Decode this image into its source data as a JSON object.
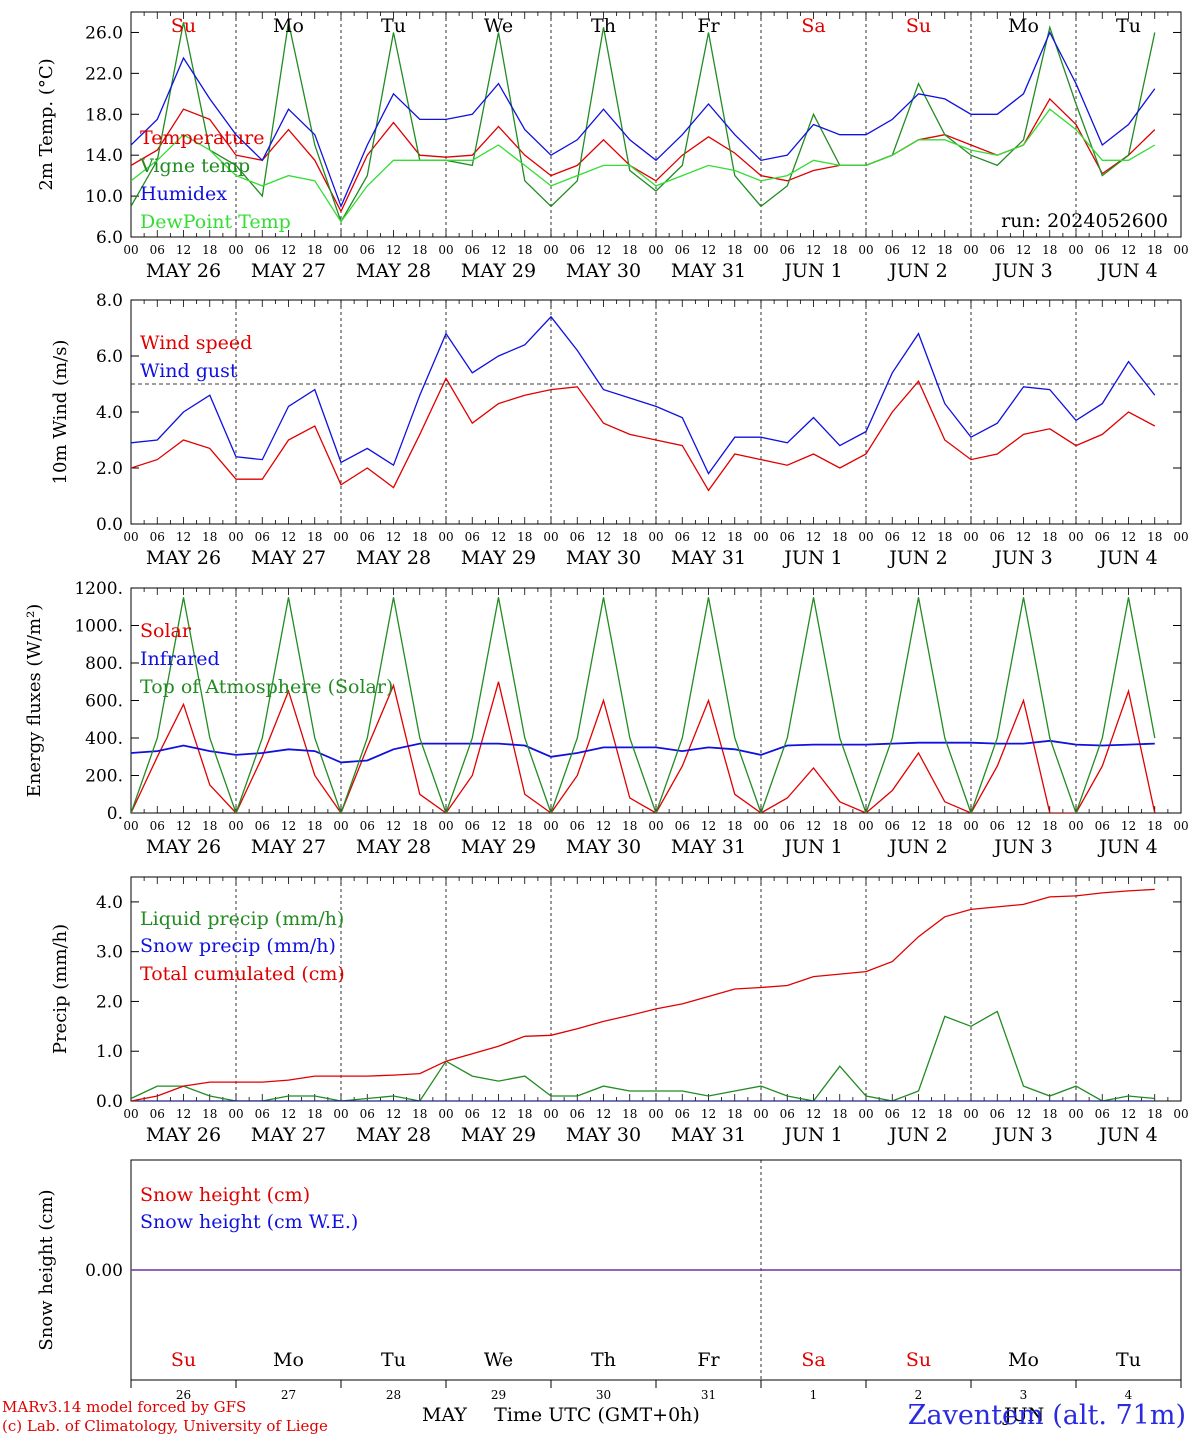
{
  "run_label": "run: 2024052600",
  "footer": {
    "credit_line1": "MARv3.14 model forced by GFS",
    "credit_line2": "(c) Lab. of Climatology, University of Liege",
    "xlabel": "Time UTC (GMT+0h)",
    "station": "Zaventem (alt. 71m)",
    "month1": "MAY",
    "month2": "JUN"
  },
  "colors": {
    "red": "#e00000",
    "green": "#228b22",
    "blue": "#1010e0",
    "lightgreen": "#33dd33",
    "purple": "#7030a0",
    "grid": "#000000"
  },
  "days": {
    "weekday": [
      "Su",
      "Mo",
      "Tu",
      "We",
      "Th",
      "Fr",
      "Sa",
      "Su",
      "Mo",
      "Tu"
    ],
    "weekend_flags": [
      true,
      false,
      false,
      false,
      false,
      false,
      true,
      true,
      false,
      false
    ],
    "date_labels": [
      "MAY 26",
      "MAY 27",
      "MAY 28",
      "MAY 29",
      "MAY 30",
      "MAY 31",
      "JUN  1",
      "JUN  2",
      "JUN  3",
      "JUN  4"
    ],
    "day_numbers": [
      "26",
      "27",
      "28",
      "29",
      "30",
      "31",
      "1",
      "2",
      "3",
      "4"
    ],
    "hour_ticks": [
      "00",
      "06",
      "12",
      "18"
    ]
  },
  "chart_data": [
    {
      "type": "line",
      "ylabel": "2m Temp. (°C)",
      "ylim": [
        6.0,
        28.0
      ],
      "yticks": [
        "6.0",
        "10.0",
        "14.0",
        "18.0",
        "22.0",
        "26.0"
      ],
      "x_hours": [
        0,
        6,
        12,
        18,
        24,
        30,
        36,
        42,
        48,
        54,
        60,
        66,
        72,
        78,
        84,
        90,
        96,
        102,
        108,
        114,
        120,
        126,
        132,
        138,
        144,
        150,
        156,
        162,
        168,
        174,
        180,
        186,
        192,
        198,
        204,
        210,
        216,
        222,
        228,
        234
      ],
      "series": [
        {
          "name": "Temperature",
          "color": "red",
          "values": [
            13.0,
            14.5,
            18.5,
            17.5,
            14.0,
            13.5,
            16.5,
            13.5,
            8.5,
            14.0,
            17.2,
            14.0,
            13.8,
            14.0,
            16.8,
            14.0,
            12.0,
            13.0,
            15.5,
            13.0,
            11.5,
            14.0,
            15.8,
            14.2,
            12.0,
            11.5,
            12.5,
            13.0,
            13.0,
            14.0,
            15.5,
            16.0,
            15.0,
            14.0,
            15.0,
            19.5,
            17.0,
            12.2,
            14.0,
            16.5
          ]
        },
        {
          "name": "Vigne temp",
          "color": "green",
          "values": [
            9.0,
            13.5,
            27.0,
            14.5,
            13.0,
            10.0,
            27.0,
            15.0,
            7.5,
            12.0,
            26.0,
            13.5,
            13.5,
            13.0,
            26.0,
            11.5,
            9.0,
            11.5,
            26.5,
            12.5,
            10.5,
            13.0,
            26.0,
            12.0,
            9.0,
            11.0,
            18.0,
            13.0,
            13.0,
            14.0,
            21.0,
            16.0,
            14.0,
            13.0,
            15.5,
            26.5,
            19.0,
            12.0,
            14.0,
            26.0
          ]
        },
        {
          "name": "Humidex",
          "color": "blue",
          "values": [
            15.0,
            17.5,
            23.5,
            19.5,
            16.0,
            13.5,
            18.5,
            16.0,
            9.0,
            15.0,
            20.0,
            17.5,
            17.5,
            18.0,
            21.0,
            16.5,
            14.0,
            15.5,
            18.5,
            15.5,
            13.5,
            16.0,
            19.0,
            16.0,
            13.5,
            14.0,
            17.0,
            16.0,
            16.0,
            17.5,
            20.0,
            19.5,
            18.0,
            18.0,
            20.0,
            26.0,
            21.0,
            15.0,
            17.0,
            20.5
          ]
        },
        {
          "name": "DewPoint Temp",
          "color": "lightgreen",
          "values": [
            11.5,
            13.5,
            16.0,
            14.5,
            12.0,
            11.0,
            12.0,
            11.5,
            7.5,
            11.0,
            13.5,
            13.5,
            13.5,
            13.5,
            15.0,
            13.0,
            11.0,
            12.0,
            13.0,
            13.0,
            11.0,
            12.0,
            13.0,
            12.5,
            11.5,
            12.0,
            13.5,
            13.0,
            13.0,
            14.0,
            15.5,
            15.5,
            14.5,
            14.0,
            15.0,
            18.5,
            16.5,
            13.5,
            13.5,
            15.0
          ]
        }
      ]
    },
    {
      "type": "line",
      "ylabel": "10m Wind (m/s)",
      "ylim": [
        0.0,
        8.0
      ],
      "yticks": [
        "0.0",
        "2.0",
        "4.0",
        "6.0",
        "8.0"
      ],
      "reference_line": 5.0,
      "x_hours": [
        0,
        6,
        12,
        18,
        24,
        30,
        36,
        42,
        48,
        54,
        60,
        66,
        72,
        78,
        84,
        90,
        96,
        102,
        108,
        114,
        120,
        126,
        132,
        138,
        144,
        150,
        156,
        162,
        168,
        174,
        180,
        186,
        192,
        198,
        204,
        210,
        216,
        222,
        228,
        234
      ],
      "series": [
        {
          "name": "Wind speed",
          "color": "red",
          "values": [
            2.0,
            2.3,
            3.0,
            2.7,
            1.6,
            1.6,
            3.0,
            3.5,
            1.4,
            2.0,
            1.3,
            3.2,
            5.2,
            3.6,
            4.3,
            4.6,
            4.8,
            4.9,
            3.6,
            3.2,
            3.0,
            2.8,
            1.2,
            2.5,
            2.3,
            2.1,
            2.5,
            2.0,
            2.5,
            4.0,
            5.1,
            3.0,
            2.3,
            2.5,
            3.2,
            3.4,
            2.8,
            3.2,
            4.0,
            3.5
          ]
        },
        {
          "name": "Wind gust",
          "color": "blue",
          "values": [
            2.9,
            3.0,
            4.0,
            4.6,
            2.4,
            2.3,
            4.2,
            4.8,
            2.2,
            2.7,
            2.1,
            4.6,
            6.8,
            5.4,
            6.0,
            6.4,
            7.4,
            6.2,
            4.8,
            4.5,
            4.2,
            3.8,
            1.8,
            3.1,
            3.1,
            2.9,
            3.8,
            2.8,
            3.3,
            5.4,
            6.8,
            4.3,
            3.1,
            3.6,
            4.9,
            4.8,
            3.7,
            4.3,
            5.8,
            4.6
          ]
        }
      ]
    },
    {
      "type": "line",
      "ylabel": "Energy fluxes (W/m²)",
      "ylim": [
        0,
        1200
      ],
      "yticks": [
        "0.",
        "200.",
        "400.",
        "600.",
        "800.",
        "1000.",
        "1200."
      ],
      "x_hours": [
        0,
        6,
        12,
        18,
        24,
        30,
        36,
        42,
        48,
        54,
        60,
        66,
        72,
        78,
        84,
        90,
        96,
        102,
        108,
        114,
        120,
        126,
        132,
        138,
        144,
        150,
        156,
        162,
        168,
        174,
        180,
        186,
        192,
        198,
        204,
        210,
        216,
        222,
        228,
        234
      ],
      "series": [
        {
          "name": "Solar",
          "color": "red",
          "values": [
            0,
            300,
            580,
            150,
            0,
            300,
            650,
            200,
            0,
            350,
            680,
            100,
            0,
            200,
            700,
            100,
            0,
            200,
            600,
            80,
            0,
            250,
            600,
            100,
            0,
            80,
            240,
            60,
            0,
            120,
            320,
            60,
            0,
            250,
            600,
            0,
            0,
            250,
            650,
            0
          ]
        },
        {
          "name": "Infrared",
          "color": "blue",
          "values": [
            320,
            330,
            360,
            330,
            310,
            320,
            340,
            330,
            270,
            280,
            340,
            370,
            370,
            370,
            370,
            360,
            300,
            320,
            350,
            350,
            350,
            330,
            350,
            340,
            310,
            360,
            365,
            365,
            365,
            370,
            375,
            375,
            375,
            370,
            370,
            385,
            365,
            360,
            365,
            370
          ]
        },
        {
          "name": "Top of Atmosphere (Solar)",
          "color": "green",
          "values": [
            0,
            400,
            1150,
            400,
            0,
            400,
            1150,
            400,
            0,
            400,
            1150,
            400,
            0,
            400,
            1150,
            400,
            0,
            400,
            1150,
            400,
            0,
            400,
            1150,
            400,
            0,
            400,
            1150,
            400,
            0,
            400,
            1150,
            400,
            0,
            400,
            1150,
            400,
            0,
            400,
            1150,
            400
          ]
        }
      ]
    },
    {
      "type": "line",
      "ylabel": "Precip (mm/h)",
      "ylim": [
        0.0,
        4.5
      ],
      "yticks": [
        "0.0",
        "1.0",
        "2.0",
        "3.0",
        "4.0"
      ],
      "x_hours": [
        0,
        6,
        12,
        18,
        24,
        30,
        36,
        42,
        48,
        54,
        60,
        66,
        72,
        78,
        84,
        90,
        96,
        102,
        108,
        114,
        120,
        126,
        132,
        138,
        144,
        150,
        156,
        162,
        168,
        174,
        180,
        186,
        192,
        198,
        204,
        210,
        216,
        222,
        228,
        234
      ],
      "series": [
        {
          "name": "Liquid precip (mm/h)",
          "color": "green",
          "values": [
            0.05,
            0.3,
            0.3,
            0.1,
            0.0,
            0.0,
            0.1,
            0.1,
            0.0,
            0.05,
            0.1,
            0.0,
            0.8,
            0.5,
            0.4,
            0.5,
            0.1,
            0.1,
            0.3,
            0.2,
            0.2,
            0.2,
            0.1,
            0.2,
            0.3,
            0.1,
            0.0,
            0.7,
            0.1,
            0.0,
            0.2,
            1.7,
            1.5,
            1.8,
            0.3,
            0.1,
            0.3,
            0.0,
            0.1,
            0.05
          ]
        },
        {
          "name": "Snow precip (mm/h)",
          "color": "blue",
          "values": [
            0,
            0,
            0,
            0,
            0,
            0,
            0,
            0,
            0,
            0,
            0,
            0,
            0,
            0,
            0,
            0,
            0,
            0,
            0,
            0,
            0,
            0,
            0,
            0,
            0,
            0,
            0,
            0,
            0,
            0,
            0,
            0,
            0,
            0,
            0,
            0,
            0,
            0,
            0,
            0
          ]
        },
        {
          "name": "Total cumulated (cm)",
          "color": "red",
          "values": [
            0.0,
            0.1,
            0.3,
            0.38,
            0.38,
            0.38,
            0.42,
            0.5,
            0.5,
            0.5,
            0.52,
            0.55,
            0.8,
            0.95,
            1.1,
            1.3,
            1.32,
            1.45,
            1.6,
            1.72,
            1.85,
            1.95,
            2.1,
            2.25,
            2.28,
            2.32,
            2.5,
            2.55,
            2.6,
            2.8,
            3.3,
            3.7,
            3.85,
            3.9,
            3.95,
            4.1,
            4.12,
            4.18,
            4.22,
            4.25
          ]
        }
      ]
    },
    {
      "type": "line",
      "ylabel": "Snow height (cm)",
      "yticks": [
        "0.00"
      ],
      "series": [
        {
          "name": "Snow height (cm)",
          "color": "red",
          "values": [
            0,
            0
          ]
        },
        {
          "name": "Snow height (cm W.E.)",
          "color": "blue",
          "values": [
            0,
            0
          ]
        }
      ]
    }
  ]
}
